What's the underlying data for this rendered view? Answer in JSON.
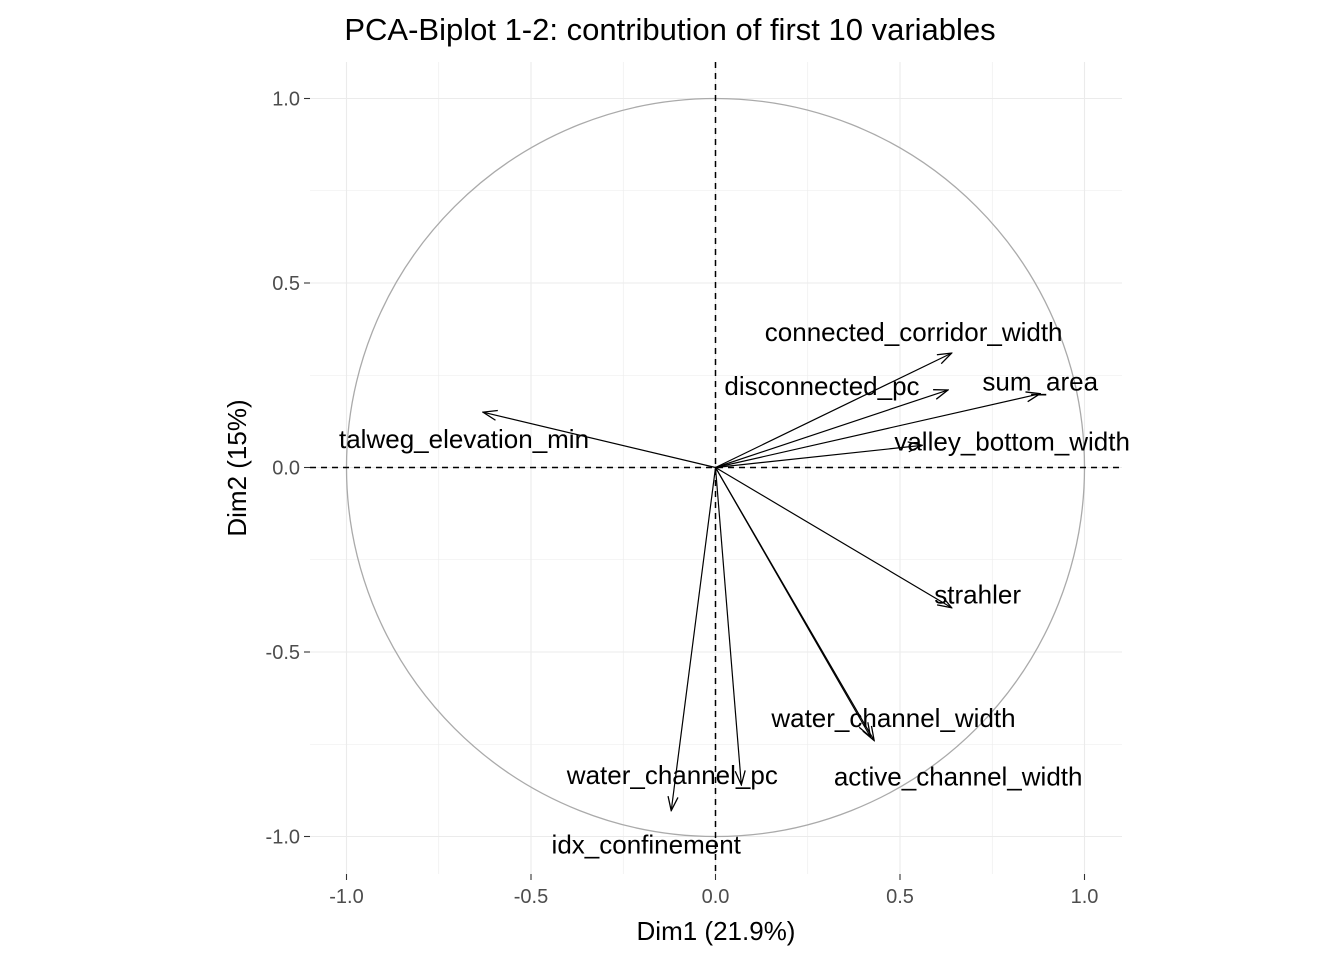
{
  "chart_data": {
    "type": "scatter",
    "title": "PCA-Biplot 1-2: contribution of first 10 variables",
    "xlabel": "Dim1 (21.9%)",
    "ylabel": "Dim2 (15%)",
    "xlim": [
      -1.1,
      1.1
    ],
    "ylim": [
      -1.1,
      1.1
    ],
    "x_ticks": [
      -1.0,
      -0.5,
      0.0,
      0.5,
      1.0
    ],
    "x_tick_labels": [
      "-1.0",
      "-0.5",
      "0.0",
      "0.5",
      "1.0"
    ],
    "y_ticks": [
      1.0,
      0.5,
      0.0,
      -0.5,
      -1.0
    ],
    "y_tick_labels": [
      "1.0",
      "0.5",
      "0.0",
      "-0.5",
      "-1.0"
    ],
    "grid": true,
    "unit_circle": true,
    "reference_lines": [
      "x=0 dashed",
      "y=0 dashed"
    ],
    "variables": [
      {
        "name": "connected_corridor_width",
        "x": 0.64,
        "y": 0.31
      },
      {
        "name": "disconnected_pc",
        "x": 0.63,
        "y": 0.21
      },
      {
        "name": "sum_area",
        "x": 0.88,
        "y": 0.2
      },
      {
        "name": "valley_bottom_width",
        "x": 0.56,
        "y": 0.06
      },
      {
        "name": "talweg_elevation_min",
        "x": -0.63,
        "y": 0.15
      },
      {
        "name": "strahler",
        "x": 0.64,
        "y": -0.38
      },
      {
        "name": "water_channel_width",
        "x": 0.42,
        "y": -0.73
      },
      {
        "name": "active_channel_width",
        "x": 0.43,
        "y": -0.74
      },
      {
        "name": "water_channel_pc",
        "x": 0.07,
        "y": -0.86
      },
      {
        "name": "idx_confinement",
        "x": -0.12,
        "y": -0.93
      }
    ],
    "colors": {
      "arrows": "#000000",
      "circle": "#aaaaaa",
      "grid": "#ebebeb",
      "ticks": "#4d4d4d"
    }
  }
}
